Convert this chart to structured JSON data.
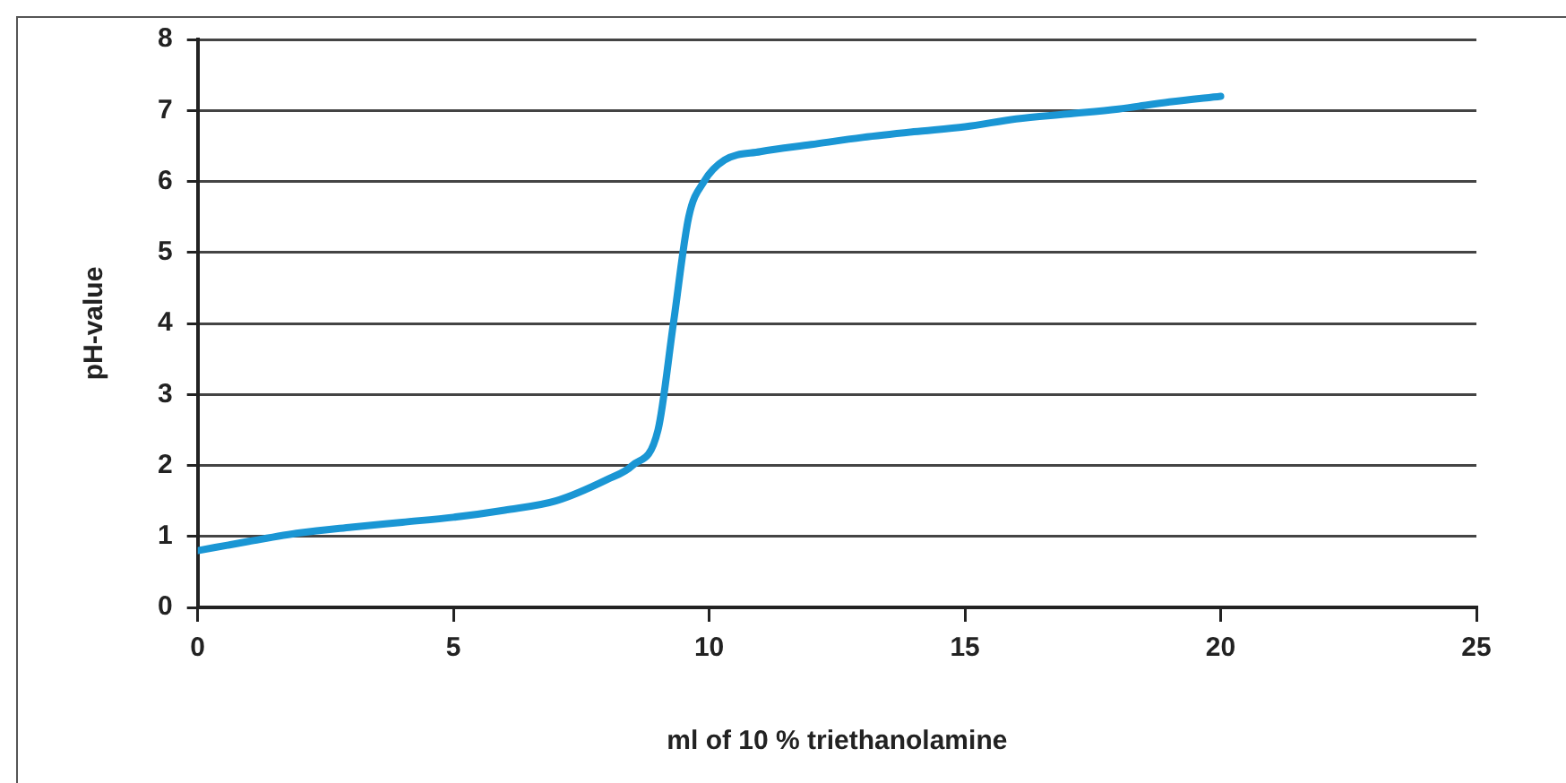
{
  "chart_data": {
    "type": "line",
    "xlabel": "ml of 10 % triethanolamine",
    "ylabel": "pH-value",
    "x": [
      0,
      1,
      2,
      3,
      4,
      5,
      6,
      7,
      8,
      8.5,
      9,
      9.3,
      9.6,
      9.9,
      10.3,
      11,
      12,
      13,
      14,
      15,
      16,
      17,
      18,
      19,
      20
    ],
    "series": [
      {
        "color": "#1a96d4",
        "values": [
          0.8,
          0.93,
          1.05,
          1.13,
          1.2,
          1.27,
          1.37,
          1.5,
          1.8,
          2.0,
          2.5,
          4.0,
          5.5,
          6.0,
          6.3,
          6.42,
          6.52,
          6.62,
          6.7,
          6.77,
          6.88,
          6.95,
          7.02,
          7.12,
          7.2
        ]
      }
    ],
    "xlim": [
      0,
      25
    ],
    "xticks": [
      0,
      5,
      10,
      15,
      20,
      25
    ],
    "ylim": [
      0,
      8
    ],
    "yticks": [
      0,
      1,
      2,
      3,
      4,
      5,
      6,
      7,
      8
    ],
    "grid": "y",
    "legend": false,
    "marker": "none",
    "line_style": "solid"
  }
}
